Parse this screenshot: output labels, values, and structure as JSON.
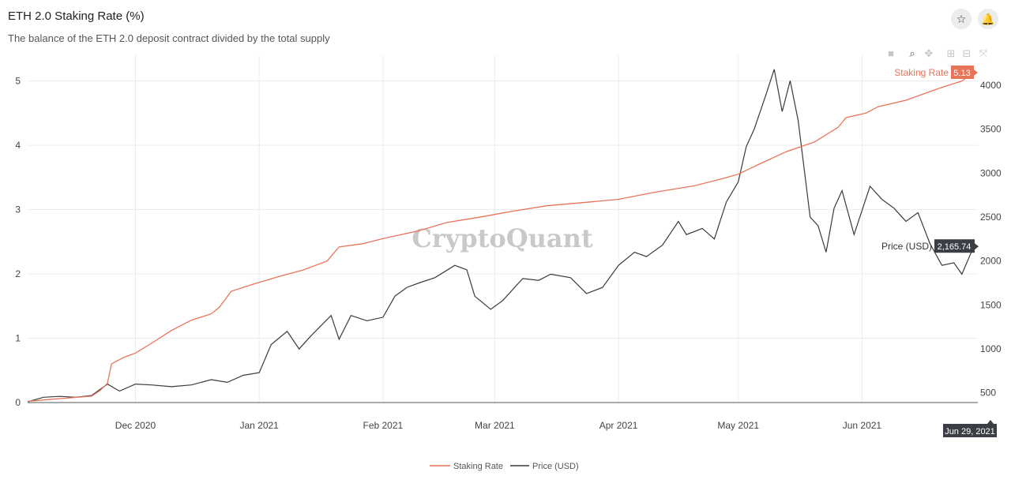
{
  "header": {
    "title": "ETH 2.0 Staking Rate (%)",
    "subtitle": "The balance of the ETH 2.0 deposit contract divided by the total supply",
    "bookmark_icon": "star-icon",
    "notification_icon": "bell-icon"
  },
  "toolbar": {
    "icons": [
      "camera-icon",
      "zoom-icon",
      "pan-icon",
      "zoom-in-icon",
      "zoom-out-icon",
      "autoscale-icon"
    ]
  },
  "watermark": "CryptoQuant",
  "colors": {
    "staking": "#e8745a",
    "price": "#3a3a3a",
    "label_bg_dark": "#3b3f45"
  },
  "chart_data": {
    "type": "line",
    "x_ticks": [
      "Dec 2020",
      "Jan 2021",
      "Feb 2021",
      "Mar 2021",
      "Apr 2021",
      "May 2021",
      "Jun 2021"
    ],
    "x_tick_dates": [
      "2020-12-01",
      "2021-01-01",
      "2021-02-01",
      "2021-03-01",
      "2021-04-01",
      "2021-05-01",
      "2021-06-01"
    ],
    "x_range": [
      "2020-11-04",
      "2021-06-30"
    ],
    "hover_x_label": "Jun 29, 2021",
    "y_left": {
      "ticks": [
        0,
        1,
        2,
        3,
        4,
        5
      ],
      "range": [
        0,
        5.4
      ]
    },
    "y_right": {
      "ticks": [
        500,
        1000,
        1500,
        2000,
        2500,
        3000,
        3500,
        4000
      ],
      "range": [
        390,
        4340
      ]
    },
    "grid": true,
    "legend_position": "bottom-center",
    "series": [
      {
        "name": "Staking Rate",
        "axis": "left",
        "last_value": "5.13",
        "points": [
          [
            "2020-11-04",
            0.02
          ],
          [
            "2020-11-08",
            0.04
          ],
          [
            "2020-11-12",
            0.06
          ],
          [
            "2020-11-16",
            0.08
          ],
          [
            "2020-11-20",
            0.1
          ],
          [
            "2020-11-22",
            0.18
          ],
          [
            "2020-11-24",
            0.3
          ],
          [
            "2020-11-25",
            0.6
          ],
          [
            "2020-11-28",
            0.7
          ],
          [
            "2020-12-01",
            0.77
          ],
          [
            "2020-12-05",
            0.92
          ],
          [
            "2020-12-10",
            1.12
          ],
          [
            "2020-12-15",
            1.28
          ],
          [
            "2020-12-20",
            1.38
          ],
          [
            "2020-12-22",
            1.48
          ],
          [
            "2020-12-25",
            1.73
          ],
          [
            "2020-12-31",
            1.85
          ],
          [
            "2021-01-06",
            1.96
          ],
          [
            "2021-01-12",
            2.06
          ],
          [
            "2021-01-18",
            2.2
          ],
          [
            "2021-01-21",
            2.42
          ],
          [
            "2021-01-27",
            2.47
          ],
          [
            "2021-02-01",
            2.55
          ],
          [
            "2021-02-10",
            2.67
          ],
          [
            "2021-02-17",
            2.8
          ],
          [
            "2021-02-25",
            2.88
          ],
          [
            "2021-03-05",
            2.97
          ],
          [
            "2021-03-14",
            3.06
          ],
          [
            "2021-03-25",
            3.12
          ],
          [
            "2021-04-01",
            3.16
          ],
          [
            "2021-04-10",
            3.27
          ],
          [
            "2021-04-20",
            3.37
          ],
          [
            "2021-04-27",
            3.48
          ],
          [
            "2021-05-01",
            3.55
          ],
          [
            "2021-05-06",
            3.7
          ],
          [
            "2021-05-13",
            3.9
          ],
          [
            "2021-05-20",
            4.05
          ],
          [
            "2021-05-26",
            4.28
          ],
          [
            "2021-05-28",
            4.43
          ],
          [
            "2021-06-02",
            4.5
          ],
          [
            "2021-06-05",
            4.6
          ],
          [
            "2021-06-12",
            4.7
          ],
          [
            "2021-06-20",
            4.88
          ],
          [
            "2021-06-26",
            5.0
          ],
          [
            "2021-06-29",
            5.13
          ]
        ]
      },
      {
        "name": "Price (USD)",
        "axis": "right",
        "last_value": "2,165.74",
        "points": [
          [
            "2020-11-04",
            400
          ],
          [
            "2020-11-08",
            450
          ],
          [
            "2020-11-12",
            460
          ],
          [
            "2020-11-16",
            450
          ],
          [
            "2020-11-20",
            470
          ],
          [
            "2020-11-24",
            600
          ],
          [
            "2020-11-27",
            520
          ],
          [
            "2020-12-01",
            600
          ],
          [
            "2020-12-05",
            590
          ],
          [
            "2020-12-10",
            570
          ],
          [
            "2020-12-15",
            590
          ],
          [
            "2020-12-20",
            650
          ],
          [
            "2020-12-24",
            620
          ],
          [
            "2020-12-28",
            700
          ],
          [
            "2021-01-01",
            730
          ],
          [
            "2021-01-04",
            1050
          ],
          [
            "2021-01-08",
            1200
          ],
          [
            "2021-01-11",
            1000
          ],
          [
            "2021-01-14",
            1150
          ],
          [
            "2021-01-19",
            1380
          ],
          [
            "2021-01-21",
            1110
          ],
          [
            "2021-01-24",
            1380
          ],
          [
            "2021-01-28",
            1320
          ],
          [
            "2021-02-01",
            1360
          ],
          [
            "2021-02-04",
            1600
          ],
          [
            "2021-02-07",
            1700
          ],
          [
            "2021-02-10",
            1750
          ],
          [
            "2021-02-14",
            1810
          ],
          [
            "2021-02-19",
            1950
          ],
          [
            "2021-02-22",
            1900
          ],
          [
            "2021-02-24",
            1600
          ],
          [
            "2021-02-28",
            1450
          ],
          [
            "2021-03-03",
            1550
          ],
          [
            "2021-03-08",
            1800
          ],
          [
            "2021-03-12",
            1780
          ],
          [
            "2021-03-15",
            1850
          ],
          [
            "2021-03-20",
            1810
          ],
          [
            "2021-03-24",
            1630
          ],
          [
            "2021-03-28",
            1700
          ],
          [
            "2021-04-01",
            1950
          ],
          [
            "2021-04-05",
            2100
          ],
          [
            "2021-04-08",
            2050
          ],
          [
            "2021-04-12",
            2180
          ],
          [
            "2021-04-16",
            2450
          ],
          [
            "2021-04-18",
            2300
          ],
          [
            "2021-04-22",
            2370
          ],
          [
            "2021-04-25",
            2250
          ],
          [
            "2021-04-28",
            2670
          ],
          [
            "2021-05-01",
            2900
          ],
          [
            "2021-05-03",
            3300
          ],
          [
            "2021-05-05",
            3500
          ],
          [
            "2021-05-08",
            3900
          ],
          [
            "2021-05-10",
            4180
          ],
          [
            "2021-05-12",
            3700
          ],
          [
            "2021-05-14",
            4050
          ],
          [
            "2021-05-16",
            3600
          ],
          [
            "2021-05-19",
            2500
          ],
          [
            "2021-05-21",
            2400
          ],
          [
            "2021-05-23",
            2100
          ],
          [
            "2021-05-25",
            2600
          ],
          [
            "2021-05-27",
            2800
          ],
          [
            "2021-05-30",
            2300
          ],
          [
            "2021-06-03",
            2850
          ],
          [
            "2021-06-06",
            2700
          ],
          [
            "2021-06-09",
            2600
          ],
          [
            "2021-06-12",
            2450
          ],
          [
            "2021-06-15",
            2550
          ],
          [
            "2021-06-18",
            2200
          ],
          [
            "2021-06-21",
            1950
          ],
          [
            "2021-06-24",
            1980
          ],
          [
            "2021-06-26",
            1850
          ],
          [
            "2021-06-29",
            2165.74
          ]
        ]
      }
    ]
  }
}
